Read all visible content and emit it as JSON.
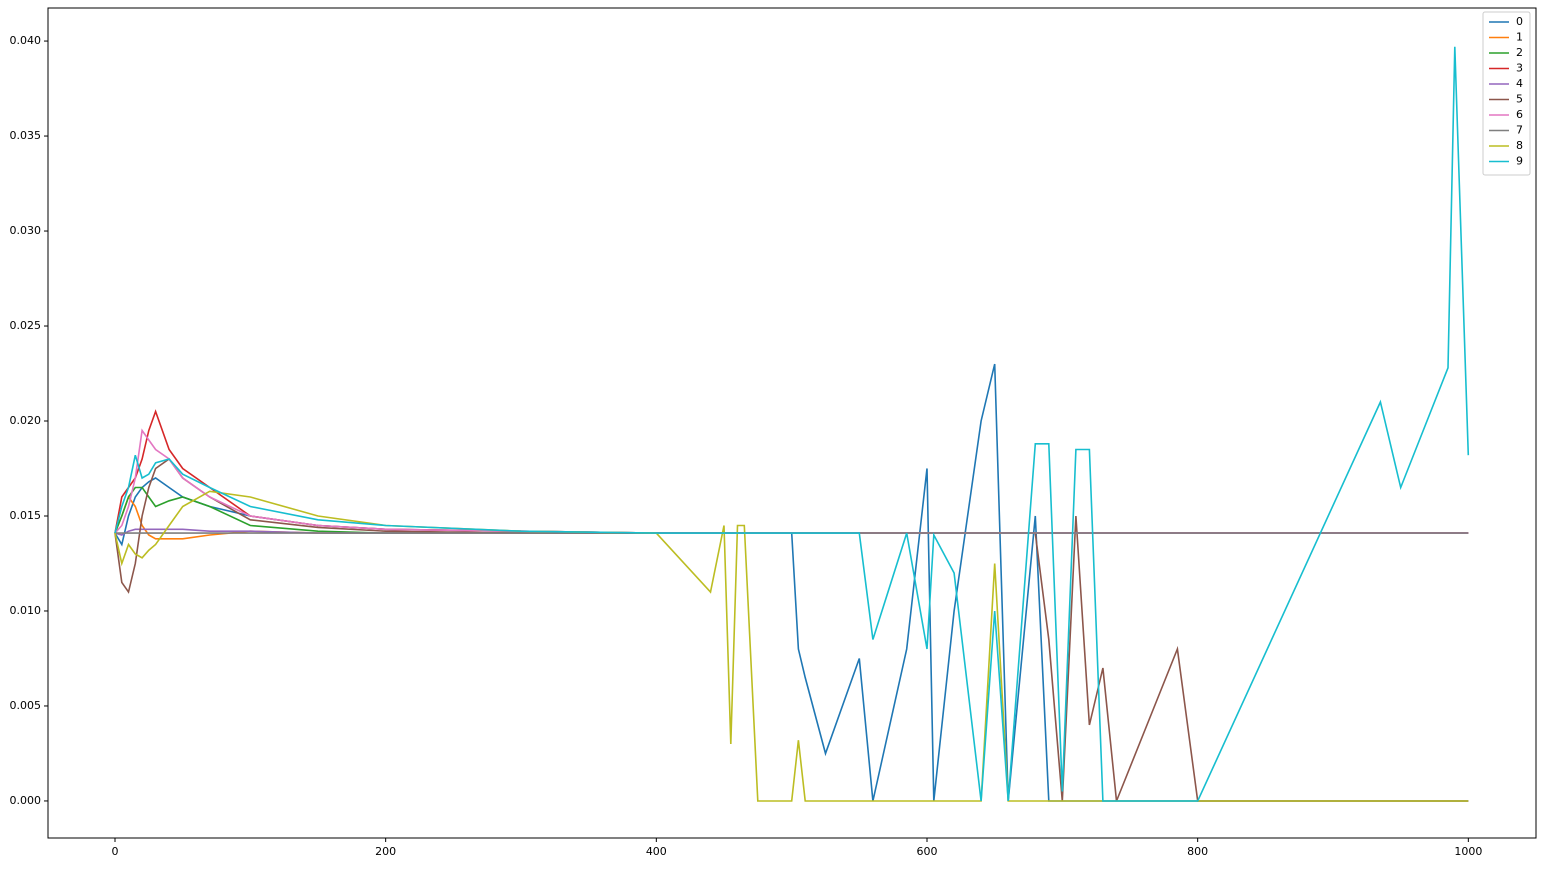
{
  "chart_data": {
    "type": "line",
    "x": [
      0,
      5,
      10,
      15,
      20,
      25,
      30,
      40,
      50,
      70,
      100,
      150,
      200,
      300,
      400,
      440,
      450,
      455,
      460,
      465,
      475,
      500,
      505,
      510,
      525,
      550,
      560,
      585,
      600,
      605,
      620,
      640,
      650,
      660,
      680,
      690,
      700,
      710,
      720,
      730,
      740,
      785,
      800,
      935,
      950,
      985,
      990,
      1000
    ],
    "xlim": [
      -49.5,
      1050
    ],
    "xticks": [
      0,
      200,
      400,
      600,
      800,
      1000
    ],
    "ylim": [
      -0.00195,
      0.04174
    ],
    "yticks": [
      {
        "value": 0,
        "label": "0.000"
      },
      {
        "value": 0.005,
        "label": "0.005"
      },
      {
        "value": 0.01,
        "label": "0.010"
      },
      {
        "value": 0.015,
        "label": "0.015"
      },
      {
        "value": 0.02,
        "label": "0.020"
      },
      {
        "value": 0.025,
        "label": "0.025"
      },
      {
        "value": 0.03,
        "label": "0.030"
      },
      {
        "value": 0.035,
        "label": "0.035"
      },
      {
        "value": 0.04,
        "label": "0.040"
      }
    ],
    "legend": "upper right",
    "series": [
      {
        "name": "0",
        "color": "#1f77b4",
        "values": [
          0.0141,
          0.0135,
          0.015,
          0.016,
          0.0165,
          0.0168,
          0.017,
          0.0165,
          0.016,
          0.0155,
          0.015,
          0.0145,
          0.0143,
          0.0142,
          0.0141,
          0.0141,
          0.0141,
          0.0141,
          0.0141,
          0.0141,
          0.0141,
          0.0141,
          0.008,
          0.0065,
          0.0025,
          0.0075,
          0,
          0.008,
          0.0175,
          0,
          0.01,
          0.02,
          0.023,
          0,
          0.015,
          0,
          0,
          0,
          0,
          0,
          0,
          0,
          0,
          0,
          0,
          0,
          0,
          0
        ]
      },
      {
        "name": "1",
        "color": "#ff7f0e",
        "values": [
          0.0141,
          0.015,
          0.016,
          0.0155,
          0.0145,
          0.014,
          0.0138,
          0.0138,
          0.0138,
          0.014,
          0.0142,
          0.0141,
          0.0141,
          0.0141,
          0.0141,
          0.0141,
          0.0141,
          0.0141,
          0.0141,
          0.0141,
          0.0141,
          0.0141,
          0.0141,
          0.0141,
          0.0141,
          0.0141,
          0.0141,
          0.0141,
          0.0141,
          0.0141,
          0.0141,
          0.0141,
          0.0141,
          0.0141,
          0.0141,
          0.0141,
          0.0141,
          0.0141,
          0.0141,
          0.0141,
          0.0141,
          0.0141,
          0.0141,
          0.0141,
          0.0141,
          0.0141,
          0.0141,
          0.0141
        ]
      },
      {
        "name": "2",
        "color": "#2ca02c",
        "values": [
          0.0141,
          0.015,
          0.016,
          0.0165,
          0.0165,
          0.016,
          0.0155,
          0.0158,
          0.016,
          0.0155,
          0.0145,
          0.0142,
          0.0141,
          0.0141,
          0.0141,
          0.0141,
          0.0141,
          0.0141,
          0.0141,
          0.0141,
          0.0141,
          0.0141,
          0.0141,
          0.0141,
          0.0141,
          0.0141,
          0.0141,
          0.0141,
          0.0141,
          0.0141,
          0.0141,
          0.0141,
          0.0141,
          0.0141,
          0.0141,
          0.0141,
          0.0141,
          0.0141,
          0.0141,
          0.0141,
          0.0141,
          0.0141,
          0.0141,
          0.0141,
          0.0141,
          0.0141,
          0.0141,
          0.0141
        ]
      },
      {
        "name": "3",
        "color": "#d62728",
        "values": [
          0.0141,
          0.016,
          0.0165,
          0.017,
          0.018,
          0.0195,
          0.0205,
          0.0185,
          0.0175,
          0.0165,
          0.015,
          0.0145,
          0.0143,
          0.0142,
          0.0141,
          0.0141,
          0.0141,
          0.0141,
          0.0141,
          0.0141,
          0.0141,
          0.0141,
          0.0141,
          0.0141,
          0.0141,
          0.0141,
          0.0141,
          0.0141,
          0.0141,
          0.0141,
          0.0141,
          0.0141,
          0.0141,
          0.0141,
          0.0141,
          0.0141,
          0.0141,
          0.0141,
          0.0141,
          0.0141,
          0.0141,
          0.0141,
          0.0141,
          0.0141,
          0.0141,
          0.0141,
          0.0141,
          0.0141
        ]
      },
      {
        "name": "4",
        "color": "#9467bd",
        "values": [
          0.0141,
          0.014,
          0.0142,
          0.0143,
          0.0143,
          0.0143,
          0.0143,
          0.0143,
          0.0143,
          0.0142,
          0.0142,
          0.0141,
          0.0141,
          0.0141,
          0.0141,
          0.0141,
          0.0141,
          0.0141,
          0.0141,
          0.0141,
          0.0141,
          0.0141,
          0.0141,
          0.0141,
          0.0141,
          0.0141,
          0.0141,
          0.0141,
          0.0141,
          0.0141,
          0.0141,
          0.0141,
          0.0141,
          0.0141,
          0.0141,
          0.0141,
          0.0141,
          0.0141,
          0.0141,
          0.0141,
          0.0141,
          0.0141,
          0.0141,
          0.0141,
          0.0141,
          0.0141,
          0.0141,
          0.0141
        ]
      },
      {
        "name": "5",
        "color": "#8c564b",
        "values": [
          0.0141,
          0.0115,
          0.011,
          0.0125,
          0.015,
          0.0165,
          0.0175,
          0.018,
          0.017,
          0.016,
          0.0148,
          0.0144,
          0.0142,
          0.0141,
          0.0141,
          0.0141,
          0.0141,
          0.0141,
          0.0141,
          0.0141,
          0.0141,
          0.0141,
          0.0141,
          0.0141,
          0.0141,
          0.0141,
          0.0141,
          0.0141,
          0.0141,
          0.0141,
          0.0141,
          0.0141,
          0.0141,
          0.0141,
          0.0141,
          0.0085,
          0,
          0.015,
          0.004,
          0.007,
          0,
          0.008,
          0,
          0,
          0,
          0,
          0,
          0
        ]
      },
      {
        "name": "6",
        "color": "#e377c2",
        "values": [
          0.0141,
          0.0145,
          0.0155,
          0.017,
          0.0195,
          0.019,
          0.0185,
          0.018,
          0.017,
          0.016,
          0.015,
          0.0145,
          0.0143,
          0.0142,
          0.0141,
          0.0141,
          0.0141,
          0.0141,
          0.0141,
          0.0141,
          0.0141,
          0.0141,
          0.0141,
          0.0141,
          0.0141,
          0.0141,
          0.0141,
          0.0141,
          0.0141,
          0.0141,
          0.0141,
          0.0141,
          0.0141,
          0.0141,
          0.0141,
          0.0141,
          0.0141,
          0.0141,
          0.0141,
          0.0141,
          0.0141,
          0.0141,
          0.0141,
          0.0141,
          0.0141,
          0.0141,
          0.0141,
          0.0141
        ]
      },
      {
        "name": "7",
        "color": "#7f7f7f",
        "values": [
          0.0141,
          0.0141,
          0.0141,
          0.0141,
          0.0141,
          0.0141,
          0.0141,
          0.0141,
          0.0141,
          0.0141,
          0.0141,
          0.0141,
          0.0141,
          0.0141,
          0.0141,
          0.0141,
          0.0141,
          0.0141,
          0.0141,
          0.0141,
          0.0141,
          0.0141,
          0.0141,
          0.0141,
          0.0141,
          0.0141,
          0.0141,
          0.0141,
          0.0141,
          0.0141,
          0.0141,
          0.0141,
          0.0141,
          0.0141,
          0.0141,
          0.0141,
          0.0141,
          0.0141,
          0.0141,
          0.0141,
          0.0141,
          0.0141,
          0.0141,
          0.0141,
          0.0141,
          0.0141,
          0.0141,
          0.0141
        ]
      },
      {
        "name": "8",
        "color": "#bcbd22",
        "values": [
          0.0141,
          0.0125,
          0.0135,
          0.013,
          0.0128,
          0.0132,
          0.0135,
          0.0145,
          0.0155,
          0.0163,
          0.016,
          0.015,
          0.0145,
          0.0142,
          0.0141,
          0.011,
          0.0145,
          0.003,
          0.0145,
          0.0145,
          0,
          0,
          0.0032,
          0,
          0,
          0,
          0,
          0,
          0,
          0,
          0,
          0,
          0.0125,
          0,
          0,
          0,
          0,
          0,
          0,
          0,
          0,
          0,
          0,
          0,
          0,
          0,
          0,
          0
        ]
      },
      {
        "name": "9",
        "color": "#17becf",
        "values": [
          0.0141,
          0.0155,
          0.0165,
          0.0182,
          0.017,
          0.0172,
          0.0178,
          0.018,
          0.0172,
          0.0165,
          0.0155,
          0.0148,
          0.0145,
          0.0142,
          0.0141,
          0.0141,
          0.0141,
          0.0141,
          0.0141,
          0.0141,
          0.0141,
          0.0141,
          0.0141,
          0.0141,
          0.0141,
          0.0141,
          0.0085,
          0.0141,
          0.008,
          0.014,
          0.012,
          0,
          0.01,
          0,
          0.0188,
          0.0188,
          0.0005,
          0.0185,
          0.0185,
          0,
          0,
          0,
          0,
          0.021,
          0.0165,
          0.0228,
          0.0397,
          0.0182
        ]
      }
    ]
  }
}
